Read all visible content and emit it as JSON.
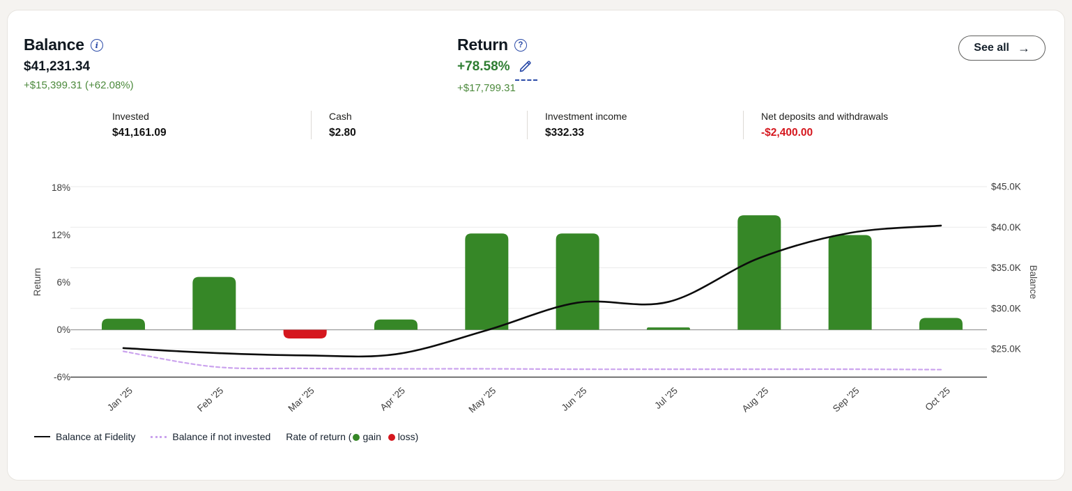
{
  "header": {
    "balance": {
      "title": "Balance",
      "info_icon": "i",
      "value": "$41,231.34",
      "change": "+$15,399.31 (+62.08%)"
    },
    "return": {
      "title": "Return",
      "help_icon": "?",
      "value": "+78.58%",
      "sub": "+$17,799.31"
    },
    "see_all": {
      "label": "See all",
      "arrow": "→"
    }
  },
  "stats": [
    {
      "label": "Invested",
      "value": "$41,161.09",
      "negative": false
    },
    {
      "label": "Cash",
      "value": "$2.80",
      "negative": false
    },
    {
      "label": "Investment income",
      "value": "$332.33",
      "negative": false
    },
    {
      "label": "Net deposits and withdrawals",
      "value": "-$2,400.00",
      "negative": true
    }
  ],
  "colors": {
    "gain": "#368727",
    "loss": "#d5171e",
    "balance_line": "#0c0c0c",
    "not_invested_line": "#cba3ee",
    "accent_blue": "#2b4ba8",
    "positive_text": "#4c8a3c",
    "negative_text": "#d5171e"
  },
  "chart_data": {
    "type": "combo",
    "categories": [
      "Jan '25",
      "Feb '25",
      "Mar '25",
      "Apr '25",
      "May '25",
      "Jun '25",
      "Jul '25",
      "Aug '25",
      "Sep '25",
      "Oct '25"
    ],
    "series": [
      {
        "name": "Rate of return",
        "type": "bar",
        "axis": "left",
        "unit": "%",
        "values": [
          1.4,
          6.7,
          -1.1,
          1.3,
          12.2,
          12.2,
          0.3,
          14.5,
          12.0,
          1.5
        ],
        "gain_color": "#368727",
        "loss_color": "#d5171e"
      },
      {
        "name": "Balance at Fidelity",
        "type": "line",
        "axis": "right",
        "unit": "$K",
        "color": "#0c0c0c",
        "values": [
          25.1,
          24.5,
          24.2,
          24.35,
          27.3,
          30.7,
          30.8,
          36.2,
          39.3,
          40.2
        ]
      },
      {
        "name": "Balance if not invested",
        "type": "line-dashed",
        "axis": "right",
        "unit": "$K",
        "color": "#cba3ee",
        "values": [
          24.7,
          22.8,
          22.6,
          22.55,
          22.55,
          22.5,
          22.5,
          22.5,
          22.5,
          22.45
        ]
      }
    ],
    "left_axis": {
      "title": "Return",
      "min": -6,
      "max": 18,
      "tick_values": [
        18,
        12,
        6,
        0,
        -6
      ],
      "tick_labels": [
        "18%",
        "12%",
        "6%",
        "0%",
        "-6%"
      ]
    },
    "right_axis": {
      "title": "Balance",
      "min": 25,
      "max": 45,
      "tick_values": [
        45,
        40,
        35,
        30,
        25
      ],
      "tick_labels": [
        "$45.0K",
        "$40.0K",
        "$35.0K",
        "$30.0K",
        "$25.0K"
      ]
    },
    "grid": true,
    "legend_position": "bottom"
  },
  "legend": {
    "balance_label": "Balance at Fidelity",
    "not_invested_label": "Balance if not invested",
    "rate_prefix": "Rate of return (",
    "gain_label": "gain",
    "loss_label": "loss",
    "rate_suffix": ")"
  }
}
